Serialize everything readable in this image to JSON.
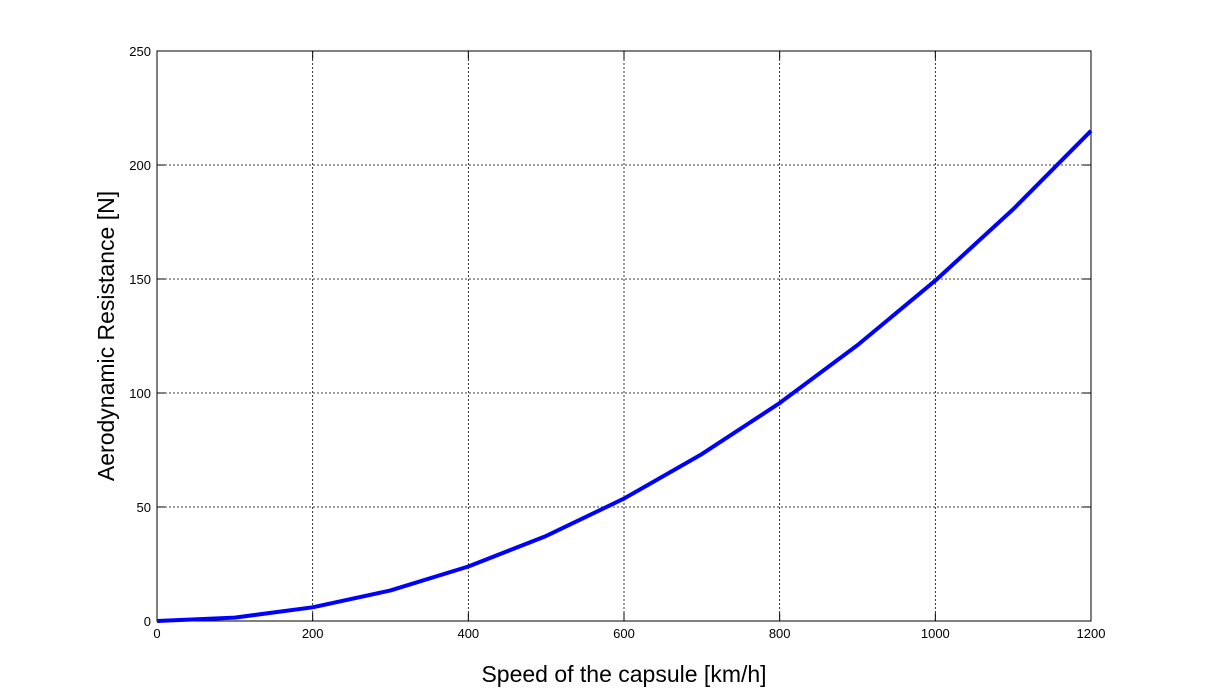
{
  "chart_data": {
    "type": "line",
    "xlabel": "Speed of the capsule [km/h]",
    "ylabel": "Aerodynamic Resistance [N]",
    "x": [
      0,
      100,
      200,
      300,
      400,
      500,
      600,
      700,
      800,
      900,
      1000,
      1100,
      1200
    ],
    "series": [
      {
        "name": "Aerodynamic Resistance",
        "color": "#0000ff",
        "values": [
          0,
          1.5,
          6,
          13.4,
          23.9,
          37.3,
          53.7,
          73.2,
          95.6,
          121,
          149.3,
          180.6,
          215
        ]
      }
    ],
    "xlim": [
      0,
      1200
    ],
    "xticks": [
      0,
      200,
      400,
      600,
      800,
      1000,
      1200
    ],
    "ylim": [
      0,
      250
    ],
    "yticks": [
      0,
      50,
      100,
      150,
      200,
      250
    ],
    "grid": true
  }
}
